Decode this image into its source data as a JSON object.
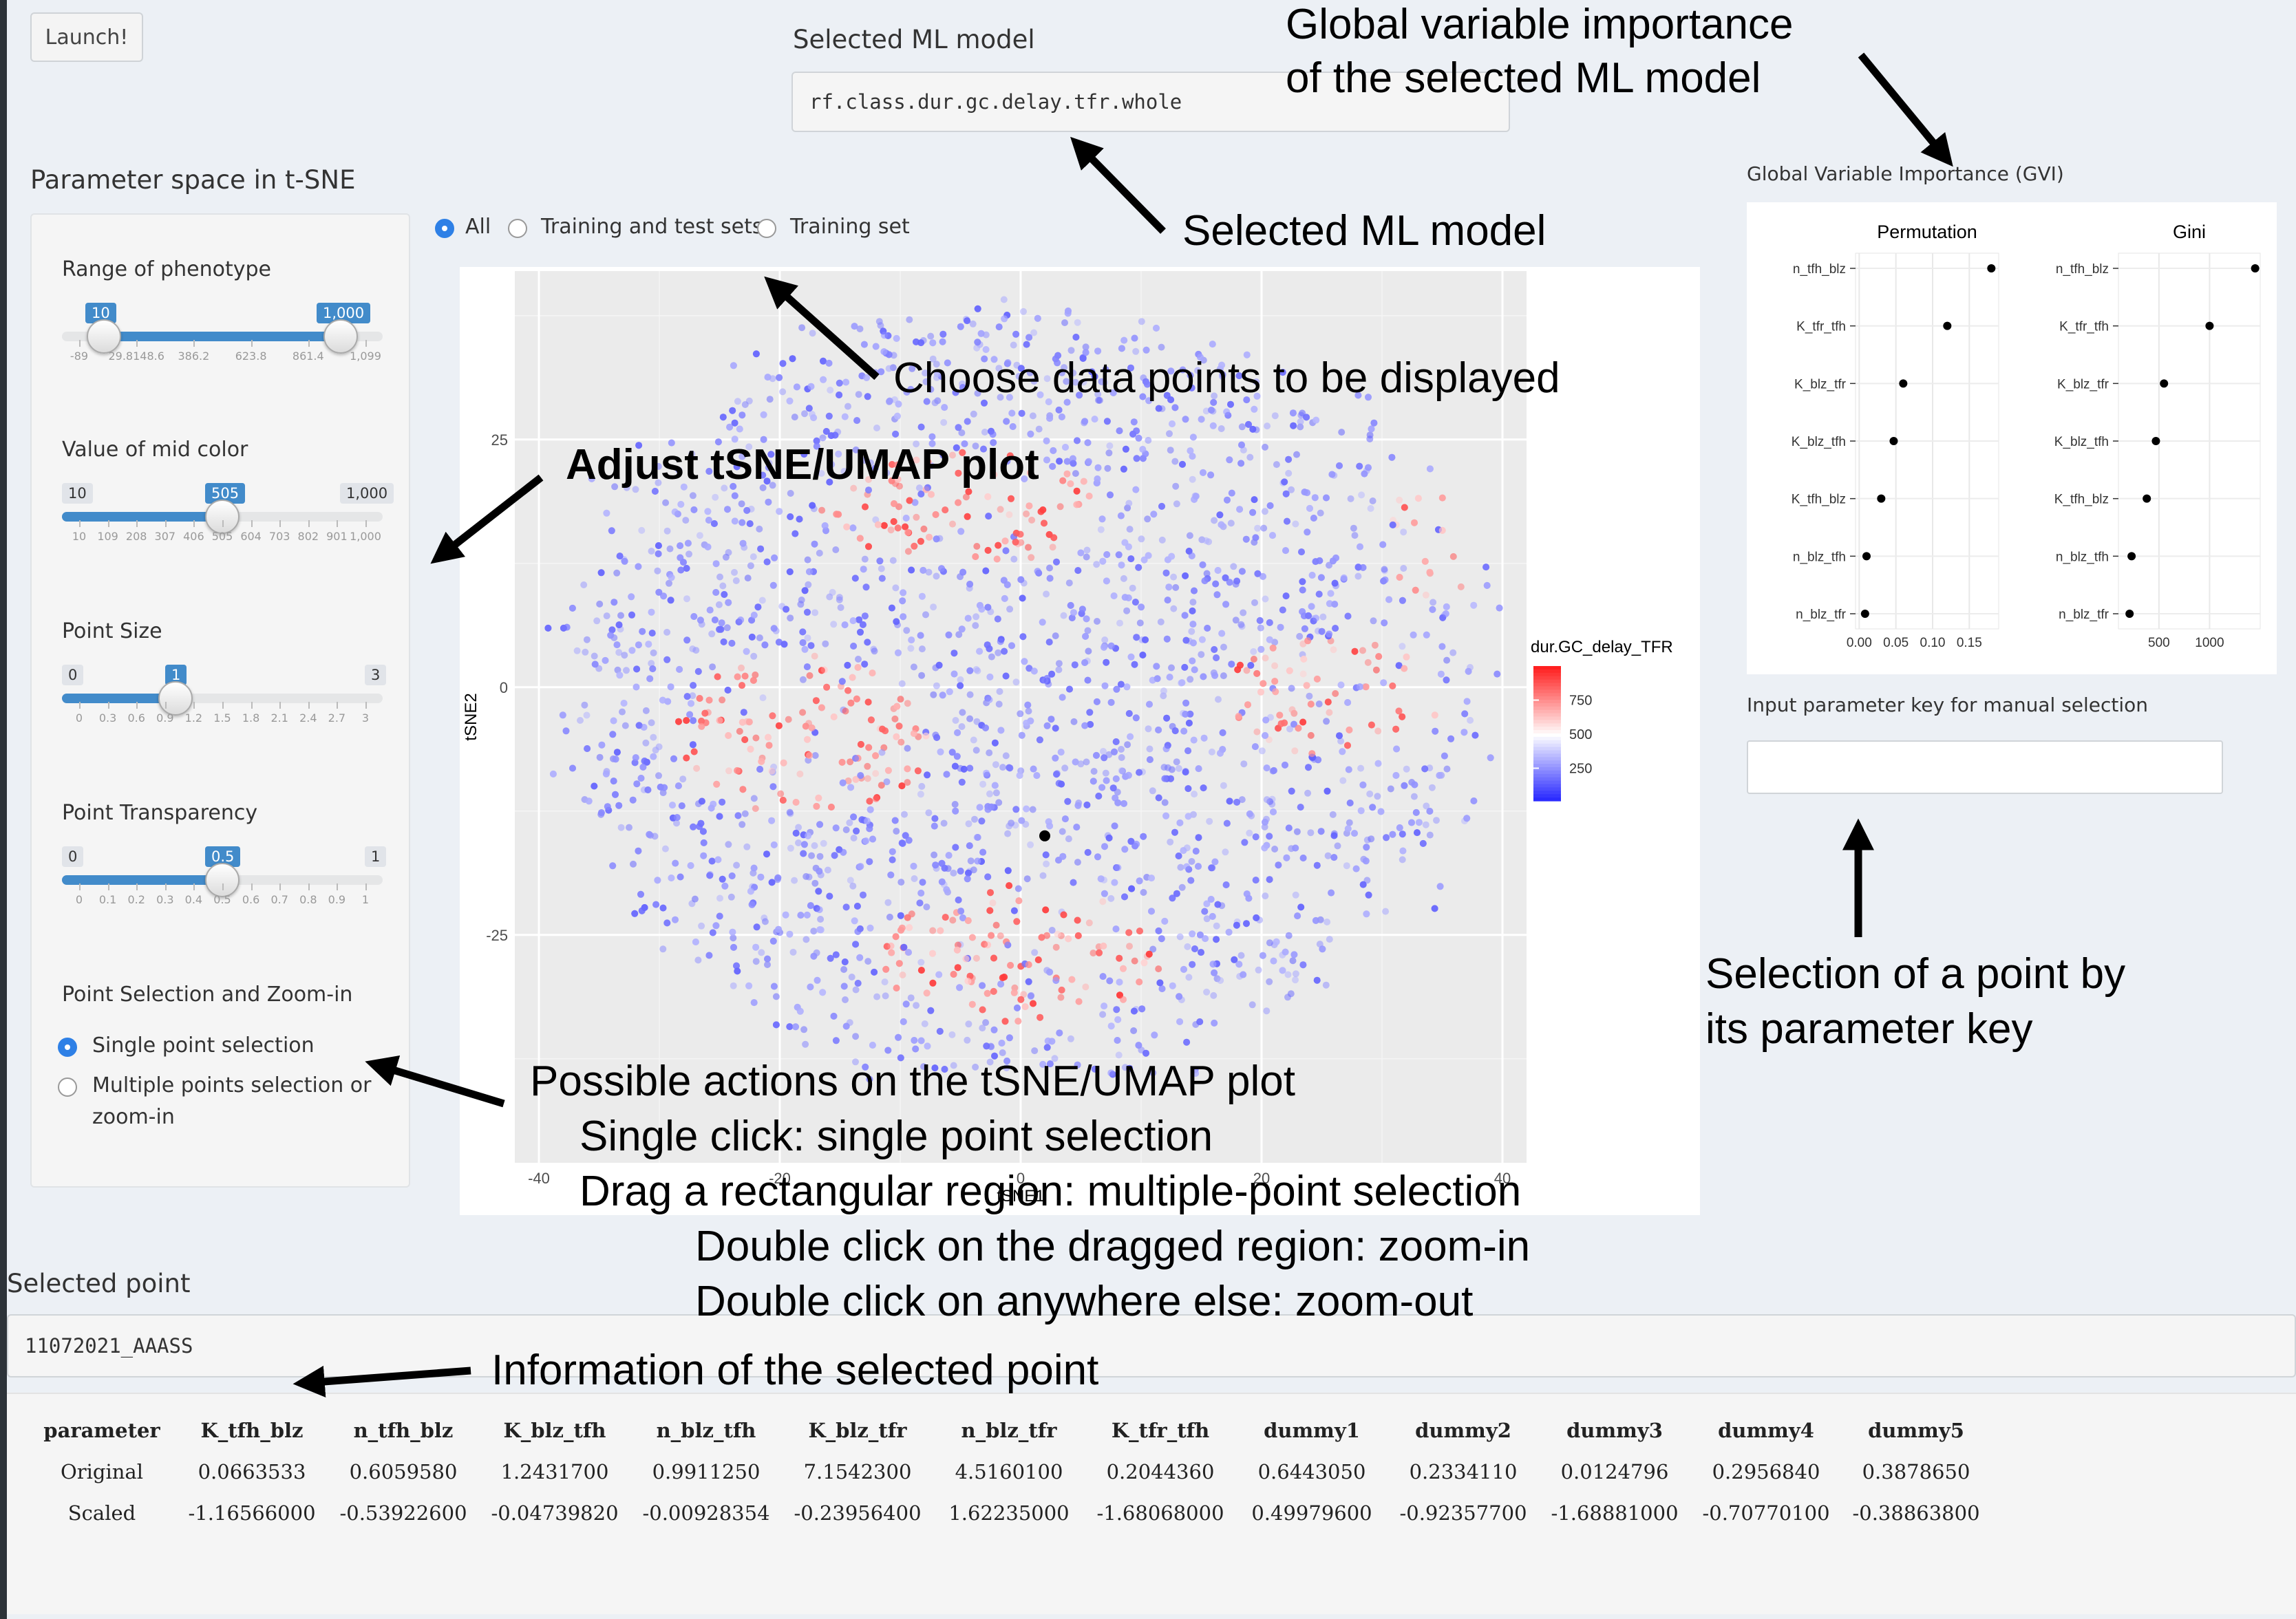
{
  "app": {
    "launch_button": "Launch!",
    "selected_model_label": "Selected ML model",
    "selected_model_value": "rf.class.dur.gc.delay.tfr.whole",
    "tsne_title": "Parameter space in t-SNE"
  },
  "sidebar": {
    "range": {
      "label": "Range of phenotype",
      "min": -89,
      "max": 1099,
      "low": 10,
      "high": 1000,
      "low_badge": "10",
      "high_badge": "1,000",
      "ticks": [
        "-89",
        "29.8148.6",
        "386.2",
        "623.8",
        "861.4",
        "1,099"
      ]
    },
    "mid_color": {
      "label": "Value of mid color",
      "min": 10,
      "max": 1000,
      "value": 505,
      "min_badge": "10",
      "max_badge": "1,000",
      "value_badge": "505",
      "ticks": [
        "10",
        "109",
        "208",
        "307",
        "406",
        "505",
        "604",
        "703",
        "802",
        "901",
        "1,000"
      ]
    },
    "point_size": {
      "label": "Point Size",
      "min": 0,
      "max": 3,
      "value": 1,
      "min_badge": "0",
      "max_badge": "3",
      "value_badge": "1",
      "ticks": [
        "0",
        "0.3",
        "0.6",
        "0.9",
        "1.2",
        "1.5",
        "1.8",
        "2.1",
        "2.4",
        "2.7",
        "3"
      ]
    },
    "transparency": {
      "label": "Point Transparency",
      "min": 0,
      "max": 1,
      "value": 0.5,
      "min_badge": "0",
      "max_badge": "1",
      "value_badge": "0.5",
      "ticks": [
        "0",
        "0.1",
        "0.2",
        "0.3",
        "0.4",
        "0.5",
        "0.6",
        "0.7",
        "0.8",
        "0.9",
        "1"
      ]
    },
    "selection": {
      "label": "Point Selection and Zoom-in",
      "option1": "Single point selection",
      "option2_line1": "Multiple points selection or",
      "option2_line2": "zoom-in",
      "selected": "option1"
    }
  },
  "display_options": {
    "all": "All",
    "train_test": "Training and test sets",
    "train": "Training set",
    "selected": "all"
  },
  "gvi": {
    "title": "Global Variable Importance (GVI)",
    "input_label": "Input parameter key for manual selection",
    "input_value": ""
  },
  "selected": {
    "label": "Selected point",
    "value": "11072021_AAASS",
    "table": {
      "headers": [
        "parameter",
        "K_tfh_blz",
        "n_tfh_blz",
        "K_blz_tfh",
        "n_blz_tfh",
        "K_blz_tfr",
        "n_blz_tfr",
        "K_tfr_tfh",
        "dummy1",
        "dummy2",
        "dummy3",
        "dummy4",
        "dummy5"
      ],
      "rows": [
        [
          "Original",
          "0.0663533",
          "0.6059580",
          "1.2431700",
          "0.9911250",
          "7.1542300",
          "4.5160100",
          "0.2044360",
          "0.6443050",
          "0.2334110",
          "0.0124796",
          "0.2956840",
          "0.3878650"
        ],
        [
          "Scaled",
          "-1.16566000",
          "-0.53922600",
          "-0.04739820",
          "-0.00928354",
          "-0.23956400",
          "1.62235000",
          "-1.68068000",
          "0.49979600",
          "-0.92357700",
          "-1.68881000",
          "-0.70770100",
          "-0.38863800"
        ]
      ]
    }
  },
  "annotations": {
    "gvi_line1": "Global variable importance",
    "gvi_line2": "of the selected ML model",
    "model": "Selected ML model",
    "choose": "Choose data points to be displayed",
    "adjust": "Adjust tSNE/UMAP plot",
    "key_line1": "Selection of a point by",
    "key_line2": "its parameter key",
    "actions": [
      "Possible actions on the tSNE/UMAP plot",
      "Single click: single point selection",
      "Drag a rectangular region: multiple-point selection",
      "Double click on the dragged region: zoom-in",
      "Double click on anywhere else: zoom-out"
    ],
    "info": "Information of the selected point"
  },
  "chart_data": [
    {
      "type": "scatter",
      "title": "",
      "xlabel": "tSNE1",
      "ylabel": "tSNE2",
      "xticks": [
        -40,
        -20,
        0,
        20,
        40
      ],
      "yticks": [
        -25,
        0,
        25
      ],
      "xlim": [
        -42,
        42
      ],
      "ylim": [
        -48,
        42
      ],
      "legend": {
        "title": "dur.GC_delay_TFR",
        "ticks": [
          250,
          500,
          750
        ],
        "min": 10,
        "max": 1000,
        "mid": 505,
        "low_color": "#2020ff",
        "mid_color": "#ffffff",
        "high_color": "#ff2020"
      },
      "highlight_point": [
        2,
        -15
      ],
      "note": "~5000 points colored by phenotype; clusters high values around (-18,-5), (0,-25), (25,0), (-5,18)"
    },
    {
      "type": "dot",
      "title": "Permutation",
      "categories": [
        "n_tfh_blz",
        "K_tfr_tfh",
        "K_blz_tfr",
        "K_blz_tfh",
        "K_tfh_blz",
        "n_blz_tfh",
        "n_blz_tfr"
      ],
      "values": [
        0.18,
        0.12,
        0.06,
        0.047,
        0.03,
        0.01,
        0.008
      ],
      "xticks": [
        "0.00",
        "0.05",
        "0.10",
        "0.15"
      ],
      "xlim": [
        -0.005,
        0.19
      ]
    },
    {
      "type": "dot",
      "title": "Gini",
      "categories": [
        "n_tfh_blz",
        "K_tfr_tfh",
        "K_blz_tfr",
        "K_blz_tfh",
        "K_tfh_blz",
        "n_blz_tfh",
        "n_blz_tfr"
      ],
      "values": [
        1450,
        1000,
        550,
        470,
        380,
        230,
        210
      ],
      "xticks": [
        "500",
        "1000"
      ],
      "xlim": [
        100,
        1500
      ]
    }
  ]
}
